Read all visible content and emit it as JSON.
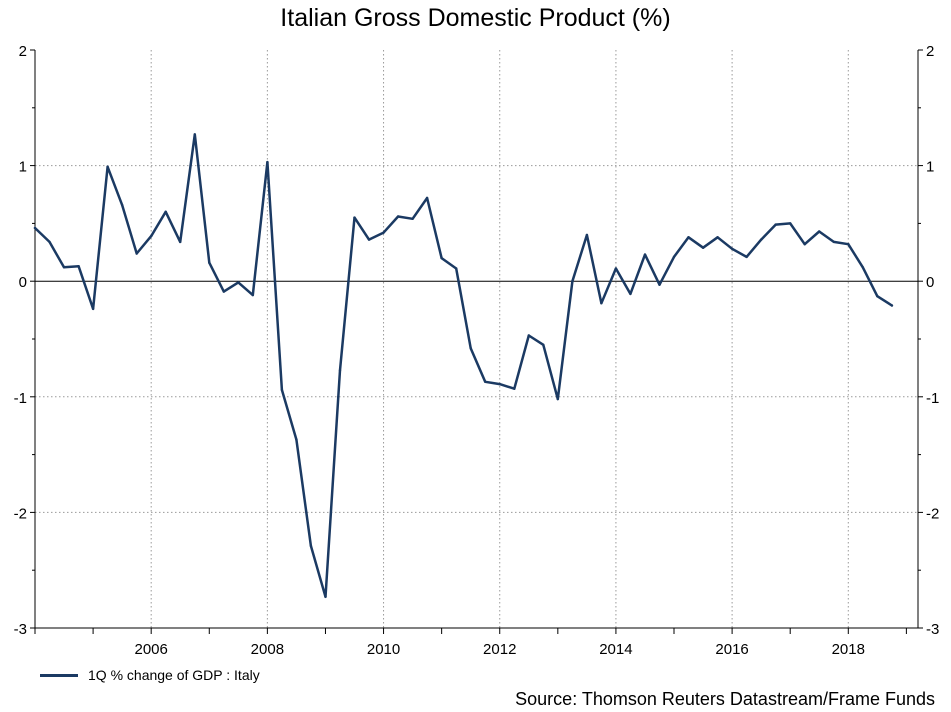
{
  "chart_data": {
    "type": "line",
    "title": "Italian Gross Domestic Product (%)",
    "xlabel": "",
    "ylabel": "",
    "xlim": [
      2004.0,
      2019.2
    ],
    "ylim": [
      -3,
      2
    ],
    "yticks": [
      2,
      1,
      0,
      -1,
      -2,
      -3
    ],
    "y_tick_labels": [
      "2",
      "1",
      "0",
      "-1",
      "-2",
      "-3"
    ],
    "xticks": [
      2006,
      2008,
      2010,
      2012,
      2014,
      2016,
      2018
    ],
    "x_tick_labels": [
      "2006",
      "2008",
      "2010",
      "2012",
      "2014",
      "2016",
      "2018"
    ],
    "grid": true,
    "zero_line": true,
    "secondary_y_axis": true,
    "legend_position": "bottom-left",
    "series": [
      {
        "name": "1Q % change of GDP : Italy",
        "color": "#1b3a63",
        "x": [
          2004.0,
          2004.25,
          2004.5,
          2004.75,
          2005.0,
          2005.25,
          2005.5,
          2005.75,
          2006.0,
          2006.25,
          2006.5,
          2006.75,
          2007.0,
          2007.25,
          2007.5,
          2007.75,
          2008.0,
          2008.25,
          2008.5,
          2008.75,
          2009.0,
          2009.25,
          2009.5,
          2009.75,
          2010.0,
          2010.25,
          2010.5,
          2010.75,
          2011.0,
          2011.25,
          2011.5,
          2011.75,
          2012.0,
          2012.25,
          2012.5,
          2012.75,
          2013.0,
          2013.25,
          2013.5,
          2013.75,
          2014.0,
          2014.25,
          2014.5,
          2014.75,
          2015.0,
          2015.25,
          2015.5,
          2015.75,
          2016.0,
          2016.25,
          2016.5,
          2016.75,
          2017.0,
          2017.25,
          2017.5,
          2017.75,
          2018.0,
          2018.25,
          2018.5,
          2018.75
        ],
        "values": [
          0.46,
          0.34,
          0.12,
          0.13,
          -0.24,
          0.99,
          0.66,
          0.24,
          0.39,
          0.6,
          0.34,
          1.27,
          0.16,
          -0.09,
          -0.01,
          -0.12,
          1.03,
          -0.94,
          -1.37,
          -2.29,
          -2.73,
          -0.77,
          0.55,
          0.36,
          0.42,
          0.56,
          0.54,
          0.72,
          0.2,
          0.11,
          -0.58,
          -0.87,
          -0.89,
          -0.93,
          -0.47,
          -0.55,
          -1.02,
          0.0,
          0.4,
          -0.19,
          0.11,
          -0.11,
          0.23,
          -0.03,
          0.21,
          0.38,
          0.29,
          0.38,
          0.28,
          0.21,
          0.36,
          0.49,
          0.5,
          0.32,
          0.43,
          0.34,
          0.32,
          0.12,
          -0.13,
          -0.21
        ]
      }
    ]
  },
  "legend": {
    "label": "1Q % change of GDP : Italy"
  },
  "footer": {
    "source": "Source: Thomson Reuters Datastream/Frame Funds"
  }
}
